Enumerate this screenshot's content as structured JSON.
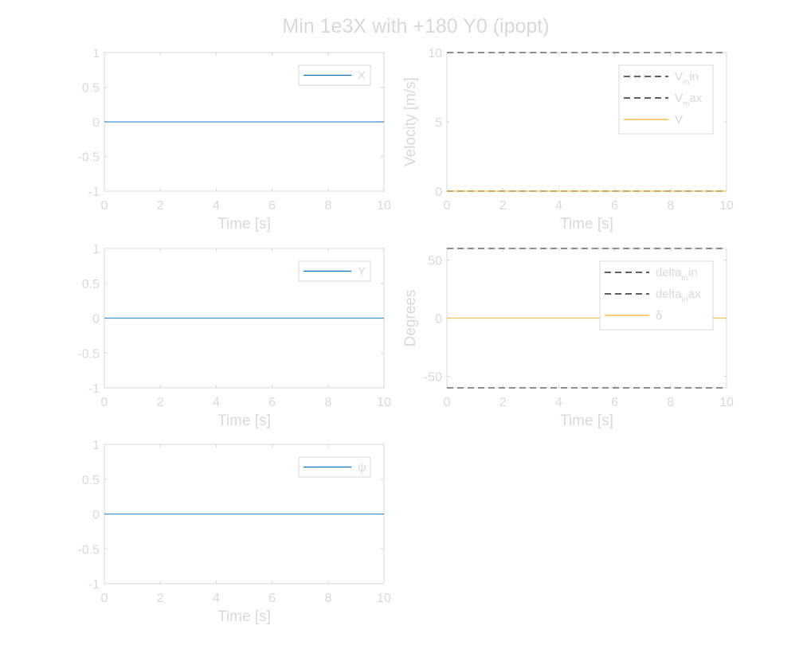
{
  "figure": {
    "title": "Min 1e3X with +180 Y0 (ipopt)",
    "background": "#ffffff",
    "text_color": "#d9d9d9",
    "axes_color": "#d9d9d9"
  },
  "chart_data": [
    {
      "id": "x",
      "type": "line",
      "xlabel": "Time [s]",
      "ylabel": "",
      "xlim": [
        0,
        10
      ],
      "ylim": [
        -1,
        1
      ],
      "xticks": [
        0,
        2,
        4,
        6,
        8,
        10
      ],
      "yticks": [
        -1,
        -0.5,
        0,
        0.5,
        1
      ],
      "legend_placement": "top-right",
      "series": [
        {
          "name": "X",
          "x": [
            0,
            10
          ],
          "y": [
            0,
            0
          ],
          "color": "#0072bd",
          "style": "solid",
          "label_parts": [
            "X"
          ]
        }
      ]
    },
    {
      "id": "velocity",
      "type": "line",
      "xlabel": "Time [s]",
      "ylabel": "Velocity [m/s]",
      "xlim": [
        0,
        10
      ],
      "ylim": [
        0,
        10
      ],
      "xticks": [
        0,
        2,
        4,
        6,
        8,
        10
      ],
      "yticks": [
        0,
        5,
        10
      ],
      "legend_placement": "top-right",
      "series": [
        {
          "name": "V_min",
          "x": [
            0,
            10
          ],
          "y": [
            0,
            0
          ],
          "color": "#000000",
          "style": "dashed",
          "label_parts": [
            "V",
            "m",
            "in"
          ]
        },
        {
          "name": "V_max",
          "x": [
            0,
            10
          ],
          "y": [
            10,
            10
          ],
          "color": "#000000",
          "style": "dashed",
          "label_parts": [
            "V",
            "m",
            "ax"
          ]
        },
        {
          "name": "V",
          "x": [
            0,
            10
          ],
          "y": [
            0,
            0
          ],
          "color": "#edb120",
          "style": "solid",
          "label_parts": [
            "V"
          ]
        }
      ]
    },
    {
      "id": "y",
      "type": "line",
      "xlabel": "Time [s]",
      "ylabel": "",
      "xlim": [
        0,
        10
      ],
      "ylim": [
        -1,
        1
      ],
      "xticks": [
        0,
        2,
        4,
        6,
        8,
        10
      ],
      "yticks": [
        -1,
        -0.5,
        0,
        0.5,
        1
      ],
      "legend_placement": "top-right",
      "series": [
        {
          "name": "Y",
          "x": [
            0,
            10
          ],
          "y": [
            0,
            0
          ],
          "color": "#0072bd",
          "style": "solid",
          "label_parts": [
            "Y"
          ]
        }
      ]
    },
    {
      "id": "delta",
      "type": "line",
      "xlabel": "Time [s]",
      "ylabel": "Degrees",
      "xlim": [
        0,
        10
      ],
      "ylim": [
        -60,
        60
      ],
      "xticks": [
        0,
        2,
        4,
        6,
        8,
        10
      ],
      "yticks": [
        -50,
        0,
        50
      ],
      "legend_placement": "top-right",
      "series": [
        {
          "name": "delta_min",
          "x": [
            0,
            10
          ],
          "y": [
            -60,
            -60
          ],
          "color": "#000000",
          "style": "dashed",
          "label_parts": [
            "delta",
            "m",
            "in"
          ]
        },
        {
          "name": "delta_max",
          "x": [
            0,
            10
          ],
          "y": [
            60,
            60
          ],
          "color": "#000000",
          "style": "dashed",
          "label_parts": [
            "delta",
            "m",
            "ax"
          ]
        },
        {
          "name": "δ",
          "x": [
            0,
            10
          ],
          "y": [
            0,
            0
          ],
          "color": "#edb120",
          "style": "solid",
          "label_parts": [
            "δ"
          ]
        }
      ]
    },
    {
      "id": "psi",
      "type": "line",
      "xlabel": "Time [s]",
      "ylabel": "",
      "xlim": [
        0,
        10
      ],
      "ylim": [
        -1,
        1
      ],
      "xticks": [
        0,
        2,
        4,
        6,
        8,
        10
      ],
      "yticks": [
        -1,
        -0.5,
        0,
        0.5,
        1
      ],
      "legend_placement": "top-right",
      "series": [
        {
          "name": "ψ",
          "x": [
            0,
            10
          ],
          "y": [
            0,
            0
          ],
          "color": "#0072bd",
          "style": "solid",
          "label_parts": [
            "ψ"
          ]
        }
      ]
    }
  ]
}
